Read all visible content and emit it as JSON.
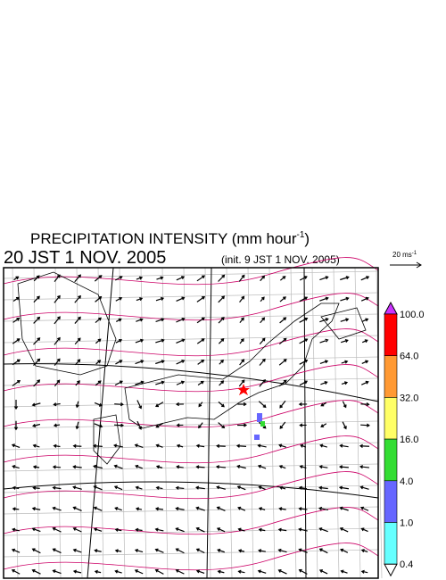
{
  "header": {
    "title": {
      "text": "PRECIPITATION INTENSITY (mm hour",
      "superscript": "-1",
      "end": ")"
    },
    "valid_time": "20 JST 1 NOV. 2005",
    "init_time": "(init. 9 JST 1 NOV. 2005)"
  },
  "scale_arrow": {
    "text": "20 ms",
    "superscript": "-1"
  },
  "colorbar": {
    "labels": [
      "100.0",
      "64.0",
      "32.0",
      "16.0",
      "4.0",
      "1.0",
      "0.4"
    ],
    "colors": [
      "#cc33ff",
      "#ff0000",
      "#ff9933",
      "#ffff66",
      "#33dd33",
      "#6666ff",
      "#66ffff",
      "#ffffff"
    ]
  }
}
